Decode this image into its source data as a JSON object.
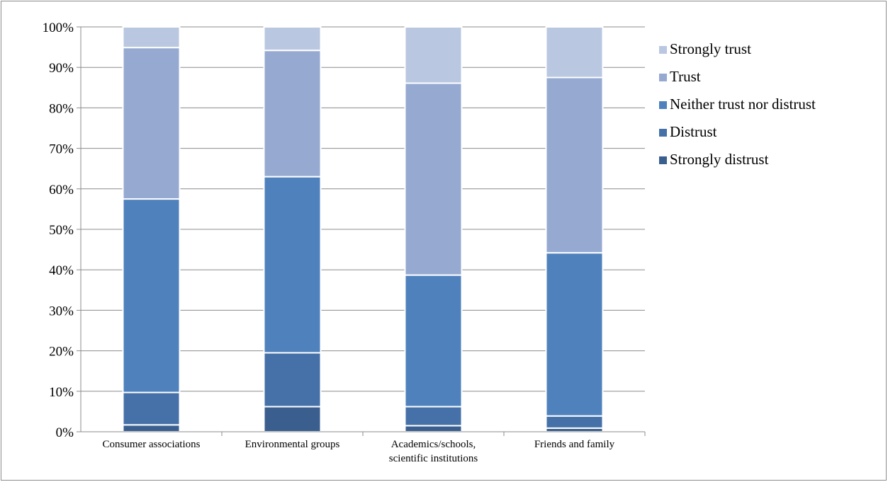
{
  "chart_data": {
    "type": "bar",
    "stacked": true,
    "percent": true,
    "categories": [
      [
        "Consumer associations"
      ],
      [
        "Environmental groups"
      ],
      [
        "Academics/schools,",
        "scientific institutions"
      ],
      [
        "Friends and family"
      ]
    ],
    "series": [
      {
        "name": "Strongly distrust",
        "color": "#3a5f8f",
        "values": [
          1.7,
          6.2,
          1.5,
          0.9
        ]
      },
      {
        "name": "Distrust",
        "color": "#4571a8",
        "values": [
          8.0,
          13.3,
          4.7,
          3.0
        ]
      },
      {
        "name": "Neither trust nor distrust",
        "color": "#4f81bd",
        "values": [
          47.8,
          43.5,
          32.5,
          40.3
        ]
      },
      {
        "name": "Trust",
        "color": "#95a9d1",
        "values": [
          37.4,
          31.2,
          47.4,
          43.3
        ]
      },
      {
        "name": "Strongly trust",
        "color": "#b9c7e1",
        "values": [
          5.1,
          5.8,
          13.9,
          12.5
        ]
      }
    ],
    "yticks": [
      "0%",
      "10%",
      "20%",
      "30%",
      "40%",
      "50%",
      "60%",
      "70%",
      "80%",
      "90%",
      "100%"
    ],
    "ylim": [
      0,
      100
    ],
    "grid": true,
    "legend_position": "right",
    "title": "",
    "xlabel": "",
    "ylabel": ""
  }
}
